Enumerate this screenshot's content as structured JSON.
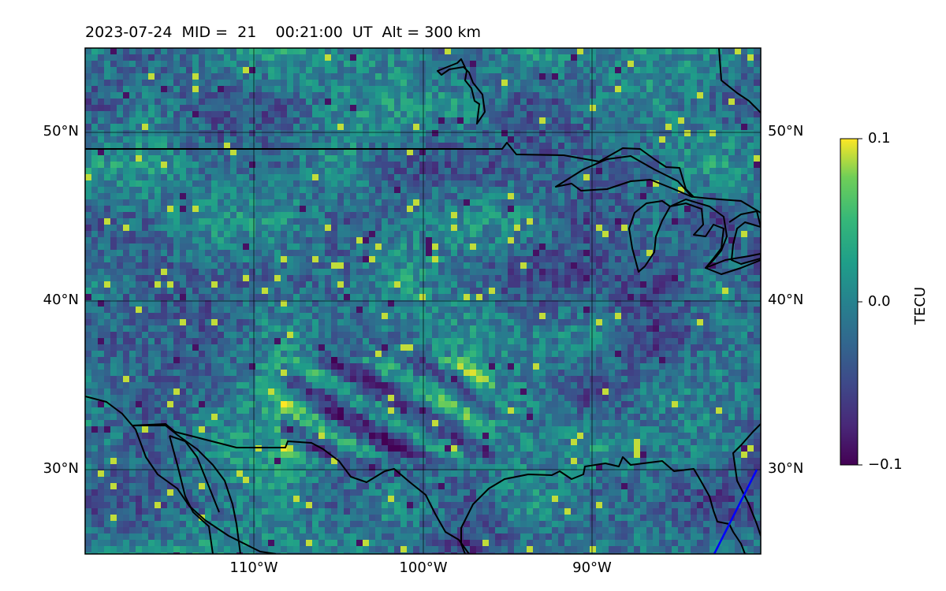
{
  "title": "2023-07-24  MID =  21    00:21:00  UT  Alt = 300 km",
  "map": {
    "lon_range": [
      -120,
      -80
    ],
    "lat_range": [
      25,
      55
    ],
    "lon_ticks": [
      {
        "value": -110,
        "label": "110°W"
      },
      {
        "value": -100,
        "label": "100°W"
      },
      {
        "value": -90,
        "label": "90°W"
      }
    ],
    "lat_ticks": [
      {
        "value": 50,
        "label": "50°N"
      },
      {
        "value": 40,
        "label": "40°N"
      },
      {
        "value": 30,
        "label": "30°N"
      }
    ],
    "coastline_color": "#000000",
    "track_color": "#0000ff"
  },
  "colorbar": {
    "label": "TECU",
    "min": -0.1,
    "max": 0.1,
    "ticks": [
      {
        "value": 0.1,
        "label": "0.1"
      },
      {
        "value": 0.0,
        "label": "0.0"
      },
      {
        "value": -0.1,
        "label": "−0.1"
      }
    ],
    "colormap": "viridis"
  }
}
